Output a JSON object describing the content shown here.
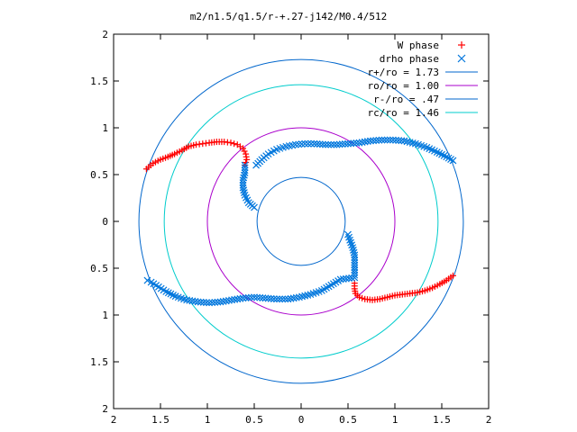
{
  "chart_data": {
    "type": "scatter",
    "title": "m2/n1.5/q1.5/r-+.27-j142/M0.4/512",
    "xlim": [
      -2,
      2
    ],
    "ylim": [
      -2,
      2
    ],
    "x_ticks": [
      {
        "value": -2,
        "label": "2"
      },
      {
        "value": -1.5,
        "label": "1.5"
      },
      {
        "value": -1,
        "label": "1"
      },
      {
        "value": -0.5,
        "label": "0.5"
      },
      {
        "value": 0,
        "label": "0"
      },
      {
        "value": 0.5,
        "label": "0.5"
      },
      {
        "value": 1,
        "label": "1"
      },
      {
        "value": 1.5,
        "label": "1.5"
      },
      {
        "value": 2,
        "label": "2"
      }
    ],
    "y_ticks": [
      {
        "value": 2,
        "label": "2"
      },
      {
        "value": 1.5,
        "label": "1.5"
      },
      {
        "value": 1,
        "label": "1"
      },
      {
        "value": 0.5,
        "label": "0.5"
      },
      {
        "value": 0,
        "label": "0"
      },
      {
        "value": -0.5,
        "label": "0.5"
      },
      {
        "value": -1,
        "label": "1"
      },
      {
        "value": -1.5,
        "label": "1.5"
      },
      {
        "value": -2,
        "label": "2"
      }
    ],
    "grid": false,
    "legend_position": "top-right",
    "series": [
      {
        "name": "W phase",
        "marker": "plus",
        "color": "#ff0000",
        "points": [
          [
            -1.65,
            0.56
          ],
          [
            -1.58,
            0.62
          ],
          [
            -1.5,
            0.66
          ],
          [
            -1.42,
            0.69
          ],
          [
            -1.35,
            0.72
          ],
          [
            -1.27,
            0.76
          ],
          [
            -1.2,
            0.8
          ],
          [
            -1.12,
            0.82
          ],
          [
            -1.05,
            0.83
          ],
          [
            -0.98,
            0.84
          ],
          [
            -0.9,
            0.85
          ],
          [
            -0.82,
            0.85
          ],
          [
            -0.75,
            0.84
          ],
          [
            -0.68,
            0.82
          ],
          [
            -0.62,
            0.78
          ],
          [
            -0.59,
            0.72
          ],
          [
            -0.58,
            0.66
          ],
          [
            -0.6,
            0.6
          ],
          [
            1.62,
            -0.58
          ],
          [
            1.55,
            -0.63
          ],
          [
            1.48,
            -0.67
          ],
          [
            1.4,
            -0.71
          ],
          [
            1.32,
            -0.74
          ],
          [
            1.24,
            -0.76
          ],
          [
            1.16,
            -0.77
          ],
          [
            1.08,
            -0.78
          ],
          [
            1.0,
            -0.79
          ],
          [
            0.92,
            -0.81
          ],
          [
            0.84,
            -0.83
          ],
          [
            0.76,
            -0.84
          ],
          [
            0.68,
            -0.83
          ],
          [
            0.62,
            -0.81
          ],
          [
            0.58,
            -0.77
          ],
          [
            0.57,
            -0.72
          ],
          [
            0.57,
            -0.66
          ]
        ]
      },
      {
        "name": "drho phase",
        "marker": "cross",
        "color": "#0077dd",
        "points": [
          [
            -0.6,
            0.6
          ],
          [
            -0.6,
            0.52
          ],
          [
            -0.62,
            0.44
          ],
          [
            -0.62,
            0.36
          ],
          [
            -0.6,
            0.28
          ],
          [
            -0.56,
            0.2
          ],
          [
            -0.5,
            0.15
          ],
          [
            -0.48,
            0.6
          ],
          [
            -0.42,
            0.66
          ],
          [
            -0.35,
            0.72
          ],
          [
            -0.26,
            0.77
          ],
          [
            -0.16,
            0.8
          ],
          [
            -0.06,
            0.82
          ],
          [
            0.04,
            0.83
          ],
          [
            0.14,
            0.83
          ],
          [
            0.26,
            0.82
          ],
          [
            0.38,
            0.82
          ],
          [
            0.5,
            0.83
          ],
          [
            0.62,
            0.84
          ],
          [
            0.74,
            0.86
          ],
          [
            0.86,
            0.87
          ],
          [
            0.98,
            0.87
          ],
          [
            1.1,
            0.86
          ],
          [
            1.22,
            0.83
          ],
          [
            1.34,
            0.79
          ],
          [
            1.45,
            0.74
          ],
          [
            1.55,
            0.69
          ],
          [
            1.62,
            0.65
          ],
          [
            0.5,
            -0.14
          ],
          [
            0.52,
            -0.2
          ],
          [
            0.55,
            -0.28
          ],
          [
            0.57,
            -0.36
          ],
          [
            0.57,
            -0.44
          ],
          [
            0.57,
            -0.52
          ],
          [
            0.57,
            -0.6
          ],
          [
            0.42,
            -0.62
          ],
          [
            0.32,
            -0.68
          ],
          [
            0.22,
            -0.74
          ],
          [
            0.1,
            -0.78
          ],
          [
            -0.02,
            -0.81
          ],
          [
            -0.14,
            -0.83
          ],
          [
            -0.26,
            -0.83
          ],
          [
            -0.38,
            -0.82
          ],
          [
            -0.5,
            -0.81
          ],
          [
            -0.62,
            -0.82
          ],
          [
            -0.74,
            -0.84
          ],
          [
            -0.86,
            -0.86
          ],
          [
            -0.98,
            -0.87
          ],
          [
            -1.1,
            -0.86
          ],
          [
            -1.22,
            -0.84
          ],
          [
            -1.34,
            -0.8
          ],
          [
            -1.44,
            -0.75
          ],
          [
            -1.52,
            -0.7
          ],
          [
            -1.6,
            -0.65
          ],
          [
            -1.64,
            -0.63
          ]
        ]
      },
      {
        "name": "r+/ro = 1.73",
        "type": "circle",
        "radius": 1.73,
        "color": "#0066cc"
      },
      {
        "name": "ro/ro = 1.00",
        "type": "circle",
        "radius": 1.0,
        "color": "#aa00cc"
      },
      {
        "name": "r-/ro = .47",
        "type": "circle",
        "radius": 0.47,
        "color": "#0066cc"
      },
      {
        "name": "rc/ro = 1.46",
        "type": "circle",
        "radius": 1.46,
        "color": "#00cccc"
      }
    ]
  }
}
